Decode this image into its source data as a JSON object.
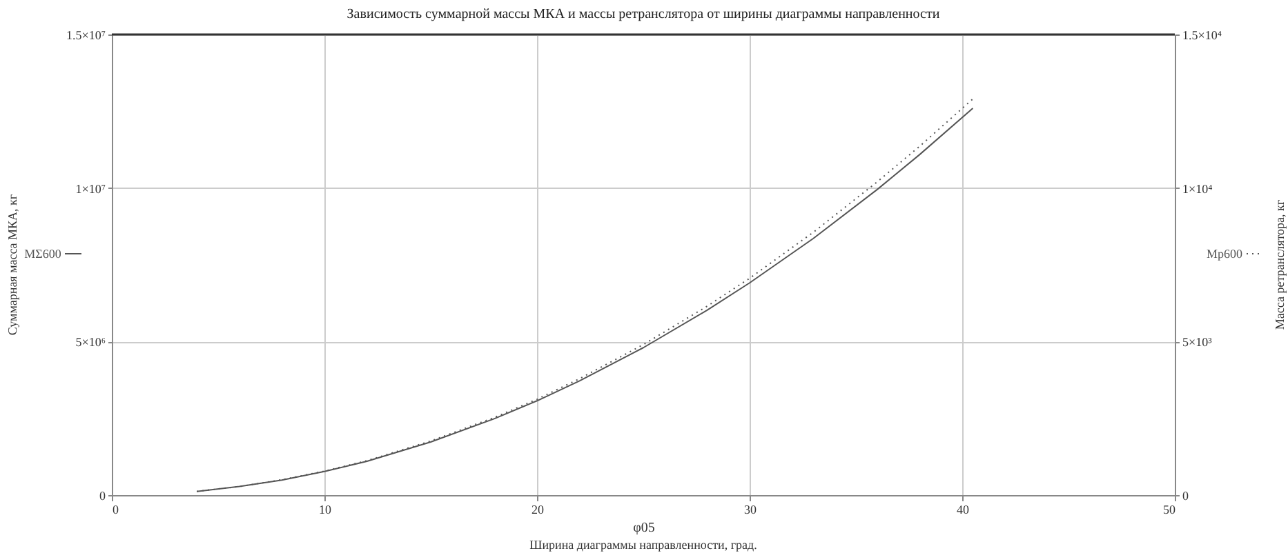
{
  "chart_data": {
    "type": "line",
    "title": "Зависимость суммарной массы МКА и массы ретранслятора от ширины диаграммы направленности",
    "xlabel": "φ05",
    "ylabel": "Суммарная масса МКА, кг",
    "y2label": "Масса ретранслятора, кг",
    "annotations": [
      "Ширина диаграммы направленности, град."
    ],
    "x": [
      4,
      6,
      8,
      10,
      12,
      15,
      18,
      20,
      22,
      25,
      28,
      30,
      33,
      36,
      38,
      40.5
    ],
    "series": [
      {
        "name": "MΣ600",
        "color": "#555555",
        "line_style": "solid",
        "values": [
          120000,
          280000,
          490000,
          770000,
          1100000,
          1730000,
          2490000,
          3070000,
          3720000,
          4800000,
          6020000,
          6910000,
          8360000,
          9950000,
          11090000,
          12600000
        ]
      },
      {
        "name": "Mp600",
        "color": "#555555",
        "line_style": "dotted",
        "axis": "y2",
        "values": [
          120,
          280,
          500,
          780,
          1120,
          1760,
          2530,
          3120,
          3790,
          4900,
          6150,
          7060,
          8560,
          10200,
          11360,
          12900
        ]
      }
    ],
    "xlim": [
      0,
      50
    ],
    "xticks": [
      0,
      10,
      20,
      30,
      40,
      50
    ],
    "ylim": [
      0,
      15000000
    ],
    "yticks": [
      0,
      {
        "value": 5000000,
        "label": "5×10⁶"
      },
      {
        "value": 10000000,
        "label": "1×10⁷"
      },
      {
        "value": 15000000,
        "label": "1.5×10⁷"
      }
    ],
    "y2lim": [
      0,
      15000
    ],
    "y2ticks": [
      0,
      {
        "value": 5000,
        "label": "5×10³"
      },
      {
        "value": 10000,
        "label": "1×10⁴"
      },
      {
        "value": 15000,
        "label": "1.5×10⁴"
      }
    ],
    "grid": true,
    "legend": "left"
  }
}
